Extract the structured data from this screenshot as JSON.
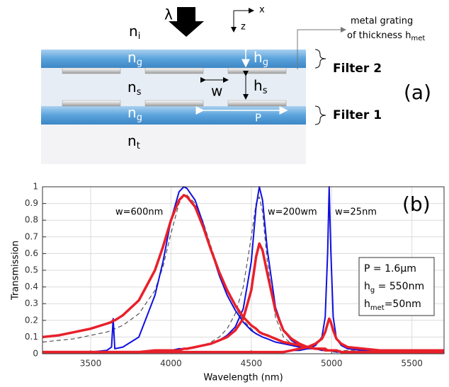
{
  "diagram": {
    "lambda": "λ",
    "x_axis": "x",
    "z_axis": "z",
    "n_i": {
      "text": "n",
      "sub": "i"
    },
    "n_g_top": {
      "text": "n",
      "sub": "g"
    },
    "h_g": {
      "text": "h",
      "sub": "g"
    },
    "n_s": {
      "text": "n",
      "sub": "s"
    },
    "w": "w",
    "h_s": {
      "text": "h",
      "sub": "s"
    },
    "n_g_bottom": {
      "text": "n",
      "sub": "g"
    },
    "P": "P",
    "n_t": {
      "text": "n",
      "sub": "t"
    },
    "metal_line1": "metal grating",
    "metal_line2": {
      "text": "of thickness h",
      "sub": "met"
    },
    "filter2": "Filter 2",
    "filter1": "Filter 1",
    "panel": "(a)"
  },
  "chart_data": {
    "type": "line",
    "panel": "(b)",
    "x_label": "Wavelength (nm)",
    "y_label": "Transmission",
    "annotations": [
      "w=600nm",
      "w=200wm",
      "w=25nm"
    ],
    "info": [
      {
        "text": "P = 1.6μm"
      },
      {
        "text": "h",
        "sub": "g",
        "rest": " = 550nm"
      },
      {
        "text": "h",
        "sub": "met",
        "rest": "=50nm"
      }
    ],
    "grid": true,
    "xlim": [
      3200,
      5700
    ],
    "ylim": [
      0,
      1
    ],
    "xticks": [
      3500,
      4000,
      4500,
      5000,
      5500
    ],
    "yticks": [
      0,
      0.1,
      0.2,
      0.3,
      0.4,
      0.5,
      0.6,
      0.7,
      0.8,
      0.9,
      1
    ],
    "x": [
      3200,
      3300,
      3400,
      3500,
      3600,
      3630,
      3640,
      3650,
      3700,
      3800,
      3900,
      3950,
      4000,
      4050,
      4080,
      4100,
      4150,
      4200,
      4250,
      4300,
      4350,
      4400,
      4450,
      4500,
      4530,
      4550,
      4570,
      4600,
      4650,
      4700,
      4750,
      4800,
      4850,
      4900,
      4940,
      4960,
      4975,
      4985,
      4995,
      5010,
      5030,
      5060,
      5100,
      5200,
      5300,
      5400,
      5500,
      5600,
      5700
    ],
    "series": [
      {
        "color": "#555555",
        "dashed": true,
        "width": 1.2,
        "values": [
          0.07,
          0.08,
          0.09,
          0.11,
          0.13,
          0.14,
          0.14,
          0.15,
          0.17,
          0.24,
          0.38,
          0.52,
          0.72,
          0.9,
          0.95,
          0.95,
          0.9,
          0.79,
          0.64,
          0.5,
          0.38,
          0.28,
          0.2,
          0.15,
          0.12,
          0.11,
          0.1,
          0.09,
          0.07,
          0.06,
          0.05,
          0.04,
          0.03,
          0.03,
          0.02,
          0.02,
          0.02,
          0.02,
          0.02,
          0.02,
          0.02,
          0.02,
          0.02,
          0.02,
          0.02,
          0.02,
          0.02,
          0.02,
          0.02
        ]
      },
      {
        "color": "#555555",
        "dashed": true,
        "width": 1.2,
        "values": [
          0.01,
          0.01,
          0.01,
          0.01,
          0.01,
          0.01,
          0.01,
          0.01,
          0.01,
          0.01,
          0.02,
          0.02,
          0.02,
          0.03,
          0.03,
          0.03,
          0.04,
          0.05,
          0.07,
          0.1,
          0.15,
          0.24,
          0.4,
          0.7,
          0.9,
          0.94,
          0.85,
          0.55,
          0.22,
          0.1,
          0.06,
          0.04,
          0.03,
          0.03,
          0.02,
          0.02,
          0.02,
          0.02,
          0.02,
          0.01,
          0.01,
          0.01,
          0.01,
          0.01,
          0.01,
          0.01,
          0.01,
          0.01,
          0.01
        ]
      },
      {
        "color": "#1010e0",
        "dashed": false,
        "width": 2,
        "values": [
          0.01,
          0.01,
          0.01,
          0.01,
          0.02,
          0.04,
          0.21,
          0.03,
          0.04,
          0.1,
          0.35,
          0.55,
          0.8,
          0.97,
          1.0,
          0.99,
          0.92,
          0.78,
          0.62,
          0.47,
          0.35,
          0.26,
          0.19,
          0.14,
          0.12,
          0.11,
          0.1,
          0.09,
          0.07,
          0.06,
          0.05,
          0.04,
          0.03,
          0.03,
          0.02,
          0.02,
          0.02,
          0.02,
          0.02,
          0.02,
          0.01,
          0.01,
          0.01,
          0.01,
          0.01,
          0.01,
          0.01,
          0.01,
          0.01
        ]
      },
      {
        "color": "#1010e0",
        "dashed": false,
        "width": 2,
        "values": [
          0.01,
          0.01,
          0.01,
          0.01,
          0.01,
          0.01,
          0.01,
          0.01,
          0.01,
          0.01,
          0.02,
          0.02,
          0.02,
          0.03,
          0.03,
          0.03,
          0.04,
          0.05,
          0.06,
          0.08,
          0.11,
          0.16,
          0.27,
          0.55,
          0.88,
          1.0,
          0.92,
          0.62,
          0.28,
          0.14,
          0.08,
          0.05,
          0.04,
          0.03,
          0.03,
          0.02,
          0.02,
          0.02,
          0.02,
          0.02,
          0.02,
          0.01,
          0.01,
          0.01,
          0.01,
          0.01,
          0.01,
          0.01,
          0.01
        ]
      },
      {
        "color": "#1010e0",
        "dashed": false,
        "width": 2,
        "values": [
          0.01,
          0.01,
          0.01,
          0.01,
          0.01,
          0.01,
          0.01,
          0.01,
          0.01,
          0.01,
          0.01,
          0.01,
          0.01,
          0.01,
          0.01,
          0.01,
          0.01,
          0.01,
          0.01,
          0.01,
          0.01,
          0.01,
          0.01,
          0.01,
          0.01,
          0.01,
          0.01,
          0.01,
          0.01,
          0.01,
          0.02,
          0.02,
          0.03,
          0.05,
          0.1,
          0.22,
          0.6,
          1.0,
          0.62,
          0.22,
          0.09,
          0.05,
          0.03,
          0.02,
          0.01,
          0.01,
          0.01,
          0.01,
          0.01
        ]
      },
      {
        "color": "#e8202a",
        "dashed": false,
        "width": 3.5,
        "values": [
          0.1,
          0.11,
          0.13,
          0.15,
          0.18,
          0.19,
          0.2,
          0.2,
          0.23,
          0.32,
          0.5,
          0.64,
          0.8,
          0.92,
          0.95,
          0.94,
          0.88,
          0.76,
          0.62,
          0.49,
          0.38,
          0.29,
          0.22,
          0.17,
          0.15,
          0.13,
          0.12,
          0.11,
          0.09,
          0.07,
          0.06,
          0.05,
          0.04,
          0.03,
          0.03,
          0.02,
          0.02,
          0.02,
          0.02,
          0.02,
          0.02,
          0.01,
          0.01,
          0.01,
          0.01,
          0.01,
          0.01,
          0.01,
          0.01
        ]
      },
      {
        "color": "#e8202a",
        "dashed": false,
        "width": 3.5,
        "values": [
          0.01,
          0.01,
          0.01,
          0.01,
          0.01,
          0.01,
          0.01,
          0.01,
          0.01,
          0.01,
          0.02,
          0.02,
          0.02,
          0.02,
          0.03,
          0.03,
          0.04,
          0.05,
          0.06,
          0.08,
          0.1,
          0.14,
          0.21,
          0.38,
          0.58,
          0.66,
          0.62,
          0.48,
          0.26,
          0.14,
          0.09,
          0.06,
          0.04,
          0.03,
          0.03,
          0.03,
          0.02,
          0.02,
          0.02,
          0.02,
          0.02,
          0.01,
          0.01,
          0.01,
          0.01,
          0.01,
          0.01,
          0.01,
          0.01
        ]
      },
      {
        "color": "#e8202a",
        "dashed": false,
        "width": 3.5,
        "values": [
          0.01,
          0.01,
          0.01,
          0.01,
          0.01,
          0.01,
          0.01,
          0.01,
          0.01,
          0.01,
          0.01,
          0.01,
          0.01,
          0.01,
          0.01,
          0.01,
          0.01,
          0.01,
          0.01,
          0.01,
          0.01,
          0.01,
          0.01,
          0.01,
          0.01,
          0.01,
          0.01,
          0.01,
          0.01,
          0.01,
          0.02,
          0.03,
          0.04,
          0.06,
          0.09,
          0.13,
          0.18,
          0.21,
          0.19,
          0.14,
          0.09,
          0.06,
          0.04,
          0.03,
          0.02,
          0.02,
          0.02,
          0.02,
          0.02
        ]
      }
    ]
  }
}
